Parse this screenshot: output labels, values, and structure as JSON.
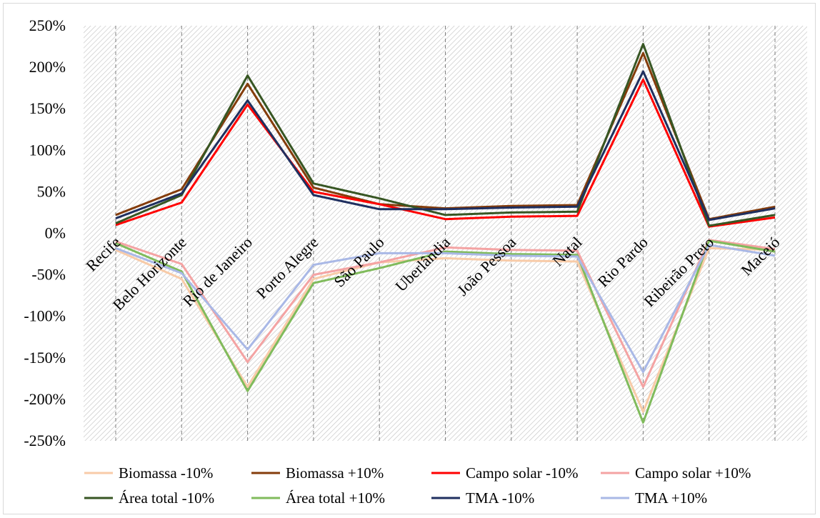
{
  "chart_data": {
    "type": "line",
    "title": "",
    "xlabel": "",
    "ylabel": "",
    "ylim": [
      -250,
      250
    ],
    "yticks": [
      250,
      200,
      150,
      100,
      50,
      0,
      -50,
      -100,
      -150,
      -200,
      -250
    ],
    "ytick_suffix": "%",
    "grid": "vertical dashed at categories; hatched plot background",
    "legend_position": "bottom",
    "categories": [
      "Recife",
      "Belo Horizonte",
      "Rio de Janeiro",
      "Porto Alegre",
      "São Paulo",
      "Uberlândia",
      "João Pessoa",
      "Natal",
      "Rio Pardo",
      "Ribeirão Preto",
      "Maceió"
    ],
    "series": [
      {
        "name": "Biomassa -10%",
        "color": "#f8cba8",
        "values": [
          -20,
          -55,
          -185,
          -55,
          -35,
          -30,
          -33,
          -34,
          -215,
          -18,
          -20
        ]
      },
      {
        "name": "Biomassa +10%",
        "color": "#843c0b",
        "values": [
          22,
          53,
          180,
          55,
          35,
          30,
          33,
          34,
          217,
          17,
          32
        ]
      },
      {
        "name": "Campo solar -10%",
        "color": "#ff0000",
        "values": [
          10,
          37,
          155,
          50,
          35,
          17,
          20,
          21,
          185,
          8,
          19
        ]
      },
      {
        "name": "Campo solar +10%",
        "color": "#f4a3a3",
        "values": [
          -10,
          -37,
          -155,
          -50,
          -35,
          -17,
          -20,
          -21,
          -185,
          -8,
          -19
        ]
      },
      {
        "name": "Área total -10%",
        "color": "#375623",
        "values": [
          12,
          46,
          190,
          60,
          42,
          22,
          25,
          26,
          228,
          9,
          22
        ]
      },
      {
        "name": "Área total +10%",
        "color": "#80bb5c",
        "values": [
          -12,
          -46,
          -190,
          -60,
          -42,
          -22,
          -25,
          -26,
          -228,
          -9,
          -22
        ]
      },
      {
        "name": "TMA -10%",
        "color": "#1f2f5f",
        "values": [
          18,
          48,
          160,
          46,
          29,
          29,
          31,
          32,
          195,
          16,
          30
        ]
      },
      {
        "name": "TMA +10%",
        "color": "#a9b8e6",
        "values": [
          -18,
          -48,
          -140,
          -38,
          -24,
          -24,
          -27,
          -28,
          -167,
          -14,
          -27
        ]
      }
    ]
  }
}
